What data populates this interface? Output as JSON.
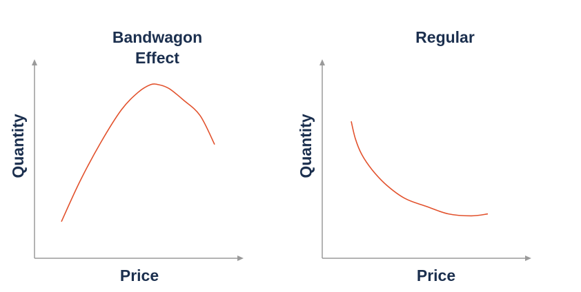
{
  "chart_data": [
    {
      "type": "line",
      "title_lines": [
        "Bandwagon",
        "Effect"
      ],
      "xlabel": "Price",
      "ylabel": "Quantity",
      "xlim": [
        0,
        100
      ],
      "ylim": [
        0,
        100
      ],
      "series": [
        {
          "color": "#e2512c",
          "x": [
            13,
            22,
            32,
            42,
            50,
            56,
            60,
            65,
            72,
            80,
            87
          ],
          "y": [
            19,
            40,
            60,
            77,
            86,
            90,
            90,
            88,
            82,
            74,
            59
          ]
        }
      ]
    },
    {
      "type": "line",
      "title_lines": [
        "Regular"
      ],
      "xlabel": "Price",
      "ylabel": "Quantity",
      "xlim": [
        0,
        100
      ],
      "ylim": [
        0,
        100
      ],
      "series": [
        {
          "color": "#e2512c",
          "x": [
            14,
            16,
            19,
            24,
            31,
            40,
            50,
            61,
            72,
            80
          ],
          "y": [
            71,
            62,
            54,
            46,
            38,
            31,
            27,
            23,
            22,
            23
          ]
        }
      ]
    }
  ]
}
